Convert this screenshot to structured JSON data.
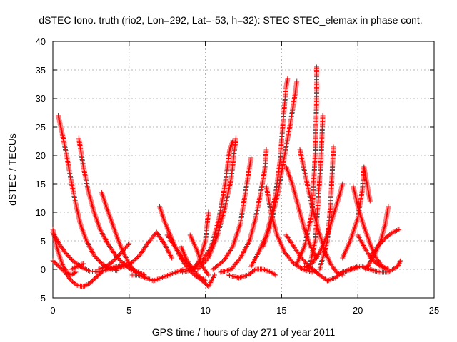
{
  "chart_data": {
    "type": "scatter",
    "title": "dSTEC Iono. truth (rio2, Lon=292, Lat=-53, h=32): STEC-STEC_elemax in phase cont.",
    "xlabel": "GPS time / hours of day 271 of year 2011",
    "ylabel": "dSTEC  / TECUs",
    "xlim": [
      0,
      25
    ],
    "ylim": [
      -5,
      40
    ],
    "xticks": [
      0,
      5,
      10,
      15,
      20,
      25
    ],
    "yticks": [
      -5,
      0,
      5,
      10,
      15,
      20,
      25,
      30,
      35,
      40
    ],
    "grid": true,
    "legend": "none",
    "marker": "plus",
    "color": "#ff0000",
    "series": [
      {
        "points": [
          [
            0.0,
            7.0
          ],
          [
            0.3,
            3.5
          ],
          [
            0.6,
            1.0
          ],
          [
            0.9,
            -0.5
          ],
          [
            1.2,
            -1.0
          ],
          [
            1.5,
            -0.5
          ]
        ]
      },
      {
        "points": [
          [
            0.0,
            1.5
          ],
          [
            0.4,
            0.5
          ],
          [
            0.8,
            -0.5
          ],
          [
            1.2,
            -2.0
          ],
          [
            1.6,
            -2.8
          ],
          [
            2.0,
            -3.0
          ],
          [
            2.4,
            -2.5
          ],
          [
            2.8,
            -1.5
          ],
          [
            3.2,
            -0.5
          ]
        ]
      },
      {
        "points": [
          [
            0.35,
            27.0
          ],
          [
            0.6,
            24.0
          ],
          [
            0.9,
            20.0
          ],
          [
            1.2,
            15.5
          ],
          [
            1.5,
            11.5
          ],
          [
            1.8,
            8.0
          ],
          [
            2.2,
            5.0
          ],
          [
            2.7,
            2.5
          ],
          [
            3.2,
            1.0
          ],
          [
            3.8,
            0.0
          ],
          [
            4.2,
            -0.2
          ]
        ]
      },
      {
        "points": [
          [
            0.0,
            6.5
          ],
          [
            0.4,
            4.5
          ],
          [
            0.8,
            3.0
          ],
          [
            1.3,
            1.5
          ],
          [
            1.8,
            0.5
          ],
          [
            2.4,
            -0.3
          ],
          [
            3.0,
            -0.5
          ],
          [
            3.6,
            0.0
          ],
          [
            4.2,
            0.5
          ],
          [
            4.8,
            1.0
          ]
        ]
      },
      {
        "points": [
          [
            1.2,
            0.0
          ],
          [
            1.6,
            0.5
          ],
          [
            2.0,
            1.0
          ]
        ]
      },
      {
        "points": [
          [
            1.7,
            23.0
          ],
          [
            2.0,
            18.0
          ],
          [
            2.3,
            14.0
          ],
          [
            2.7,
            10.0
          ],
          [
            3.1,
            7.0
          ],
          [
            3.6,
            4.5
          ],
          [
            4.1,
            2.5
          ],
          [
            4.6,
            1.0
          ],
          [
            5.1,
            0.0
          ],
          [
            5.6,
            -0.5
          ]
        ]
      },
      {
        "points": [
          [
            3.2,
            13.5
          ],
          [
            3.5,
            11.0
          ],
          [
            3.9,
            8.0
          ],
          [
            4.3,
            5.0
          ],
          [
            4.7,
            2.5
          ],
          [
            5.1,
            0.5
          ],
          [
            5.5,
            -0.5
          ],
          [
            6.0,
            -1.0
          ]
        ]
      },
      {
        "points": [
          [
            3.0,
            0.0
          ],
          [
            3.5,
            0.5
          ],
          [
            4.0,
            1.5
          ],
          [
            4.5,
            3.0
          ],
          [
            5.0,
            4.5
          ]
        ]
      },
      {
        "points": [
          [
            4.0,
            0.0
          ],
          [
            4.6,
            0.5
          ],
          [
            5.1,
            1.0
          ],
          [
            5.7,
            2.5
          ],
          [
            6.2,
            4.5
          ],
          [
            6.8,
            6.5
          ],
          [
            7.3,
            4.5
          ],
          [
            7.8,
            2.0
          ]
        ]
      },
      {
        "points": [
          [
            5.2,
            -1.0
          ],
          [
            5.6,
            -1.0
          ],
          [
            6.1,
            -1.5
          ],
          [
            6.6,
            -2.0
          ],
          [
            7.1,
            -1.5
          ],
          [
            7.6,
            -1.0
          ],
          [
            8.1,
            -0.5
          ],
          [
            8.6,
            0.0
          ]
        ]
      },
      {
        "points": [
          [
            7.0,
            11.0
          ],
          [
            7.3,
            8.5
          ],
          [
            7.7,
            6.0
          ],
          [
            8.1,
            3.5
          ],
          [
            8.5,
            1.5
          ],
          [
            8.9,
            0.0
          ],
          [
            9.3,
            -1.0
          ],
          [
            9.8,
            -2.0
          ],
          [
            10.2,
            -3.0
          ],
          [
            10.6,
            -1.0
          ]
        ]
      },
      {
        "points": [
          [
            7.5,
            6.0
          ],
          [
            8.0,
            4.0
          ],
          [
            8.5,
            2.0
          ],
          [
            9.0,
            0.5
          ],
          [
            9.5,
            -1.0
          ],
          [
            10.0,
            -2.0
          ]
        ]
      },
      {
        "points": [
          [
            8.4,
            4.0
          ],
          [
            8.8,
            1.5
          ],
          [
            9.2,
            0.0
          ],
          [
            9.6,
            1.5
          ],
          [
            10.0,
            5.0
          ],
          [
            10.2,
            10.0
          ]
        ]
      },
      {
        "points": [
          [
            9.0,
            6.0
          ],
          [
            9.5,
            3.0
          ],
          [
            9.8,
            0.5
          ],
          [
            10.2,
            -1.0
          ]
        ]
      },
      {
        "points": [
          [
            8.5,
            -0.5
          ],
          [
            9.2,
            0.0
          ],
          [
            9.8,
            1.5
          ],
          [
            10.4,
            4.0
          ],
          [
            10.9,
            9.0
          ],
          [
            11.3,
            15.0
          ],
          [
            11.6,
            21.0
          ],
          [
            11.8,
            22.5
          ]
        ]
      },
      {
        "points": [
          [
            9.5,
            0.0
          ],
          [
            10.2,
            2.0
          ],
          [
            10.8,
            6.0
          ],
          [
            11.3,
            11.0
          ],
          [
            11.7,
            16.0
          ],
          [
            12.0,
            23.0
          ]
        ]
      },
      {
        "points": [
          [
            10.5,
            0.0
          ],
          [
            11.2,
            1.5
          ],
          [
            11.8,
            4.0
          ],
          [
            12.3,
            8.0
          ],
          [
            12.6,
            13.0
          ],
          [
            12.9,
            18.0
          ],
          [
            13.0,
            19.5
          ]
        ]
      },
      {
        "points": [
          [
            11.0,
            -0.5
          ],
          [
            11.7,
            0.0
          ],
          [
            12.3,
            2.0
          ],
          [
            12.9,
            5.0
          ],
          [
            13.3,
            9.0
          ],
          [
            13.6,
            13.0
          ],
          [
            13.9,
            17.5
          ],
          [
            14.0,
            21.0
          ]
        ]
      },
      {
        "points": [
          [
            11.5,
            -1.0
          ],
          [
            12.2,
            -1.5
          ],
          [
            12.8,
            -1.0
          ],
          [
            13.3,
            0.0
          ],
          [
            13.8,
            0.0
          ],
          [
            14.3,
            -0.5
          ],
          [
            14.6,
            -1.0
          ]
        ]
      },
      {
        "points": [
          [
            13.0,
            0.5
          ],
          [
            13.5,
            3.0
          ],
          [
            14.0,
            6.0
          ],
          [
            14.3,
            9.0
          ],
          [
            14.6,
            13.0
          ],
          [
            14.9,
            19.0
          ],
          [
            15.1,
            26.0
          ],
          [
            15.3,
            32.0
          ],
          [
            15.4,
            33.5
          ]
        ]
      },
      {
        "points": [
          [
            13.8,
            4.0
          ],
          [
            14.3,
            8.0
          ],
          [
            14.8,
            14.0
          ],
          [
            15.2,
            20.0
          ],
          [
            15.6,
            26.0
          ],
          [
            15.9,
            31.0
          ],
          [
            16.0,
            33.0
          ]
        ]
      },
      {
        "points": [
          [
            14.0,
            14.5
          ],
          [
            14.3,
            10.0
          ],
          [
            14.7,
            6.0
          ],
          [
            15.2,
            3.0
          ],
          [
            15.8,
            1.0
          ],
          [
            16.4,
            0.0
          ],
          [
            17.0,
            -0.5
          ]
        ]
      },
      {
        "points": [
          [
            15.3,
            18.0
          ],
          [
            15.7,
            15.0
          ],
          [
            16.1,
            11.0
          ],
          [
            16.5,
            7.0
          ],
          [
            16.9,
            4.0
          ],
          [
            17.3,
            2.0
          ]
        ]
      },
      {
        "points": [
          [
            15.3,
            6.0
          ],
          [
            15.8,
            4.0
          ],
          [
            16.3,
            2.0
          ],
          [
            16.8,
            0.5
          ],
          [
            17.3,
            -0.5
          ]
        ]
      },
      {
        "points": [
          [
            16.0,
            1.0
          ],
          [
            16.5,
            4.0
          ],
          [
            17.0,
            10.0
          ],
          [
            17.2,
            20.0
          ],
          [
            17.3,
            30.0
          ],
          [
            17.3,
            35.5
          ]
        ]
      },
      {
        "points": [
          [
            16.2,
            21.0
          ],
          [
            16.6,
            16.0
          ],
          [
            17.0,
            11.0
          ],
          [
            17.4,
            7.0
          ],
          [
            17.8,
            3.5
          ],
          [
            18.2,
            1.0
          ],
          [
            18.6,
            -0.5
          ],
          [
            19.0,
            -1.0
          ]
        ]
      },
      {
        "points": [
          [
            16.8,
            0.0
          ],
          [
            17.2,
            5.0
          ],
          [
            17.4,
            12.0
          ],
          [
            17.6,
            20.0
          ],
          [
            17.7,
            27.0
          ]
        ]
      },
      {
        "points": [
          [
            16.5,
            0.5
          ],
          [
            17.0,
            0.0
          ],
          [
            17.5,
            -1.0
          ],
          [
            18.0,
            -2.0
          ],
          [
            18.5,
            -1.5
          ],
          [
            19.0,
            -0.5
          ],
          [
            19.5,
            0.0
          ],
          [
            20.0,
            0.5
          ]
        ]
      },
      {
        "points": [
          [
            17.5,
            0.0
          ],
          [
            18.0,
            5.0
          ],
          [
            18.2,
            11.0
          ],
          [
            18.3,
            16.0
          ],
          [
            18.4,
            21.5
          ]
        ]
      },
      {
        "points": [
          [
            17.0,
            1.0
          ],
          [
            17.5,
            3.0
          ],
          [
            18.0,
            6.0
          ],
          [
            18.4,
            9.5
          ],
          [
            18.8,
            13.0
          ],
          [
            19.0,
            15.0
          ]
        ]
      },
      {
        "points": [
          [
            19.0,
            2.0
          ],
          [
            19.5,
            5.0
          ],
          [
            20.0,
            9.0
          ],
          [
            20.3,
            14.0
          ],
          [
            20.4,
            18.0
          ],
          [
            20.6,
            15.0
          ],
          [
            20.8,
            12.0
          ]
        ]
      },
      {
        "points": [
          [
            19.7,
            14.5
          ],
          [
            20.0,
            11.0
          ],
          [
            20.4,
            7.5
          ],
          [
            20.8,
            4.5
          ],
          [
            21.2,
            2.0
          ],
          [
            21.6,
            0.5
          ],
          [
            22.0,
            0.0
          ]
        ]
      },
      {
        "points": [
          [
            19.0,
            -0.5
          ],
          [
            19.6,
            0.0
          ],
          [
            20.2,
            0.5
          ],
          [
            20.8,
            0.0
          ],
          [
            21.4,
            -0.5
          ],
          [
            22.0,
            -0.5
          ],
          [
            22.6,
            0.5
          ],
          [
            22.8,
            1.5
          ]
        ]
      },
      {
        "points": [
          [
            20.0,
            6.0
          ],
          [
            20.5,
            3.5
          ],
          [
            21.0,
            1.5
          ],
          [
            21.5,
            0.5
          ],
          [
            22.0,
            0.0
          ]
        ]
      },
      {
        "points": [
          [
            20.5,
            0.0
          ],
          [
            21.0,
            2.0
          ],
          [
            21.5,
            5.0
          ],
          [
            21.8,
            8.0
          ],
          [
            22.0,
            11.0
          ]
        ]
      },
      {
        "points": [
          [
            20.8,
            2.0
          ],
          [
            21.3,
            4.0
          ],
          [
            21.8,
            5.5
          ],
          [
            22.3,
            6.5
          ],
          [
            22.7,
            7.0
          ]
        ]
      }
    ]
  }
}
